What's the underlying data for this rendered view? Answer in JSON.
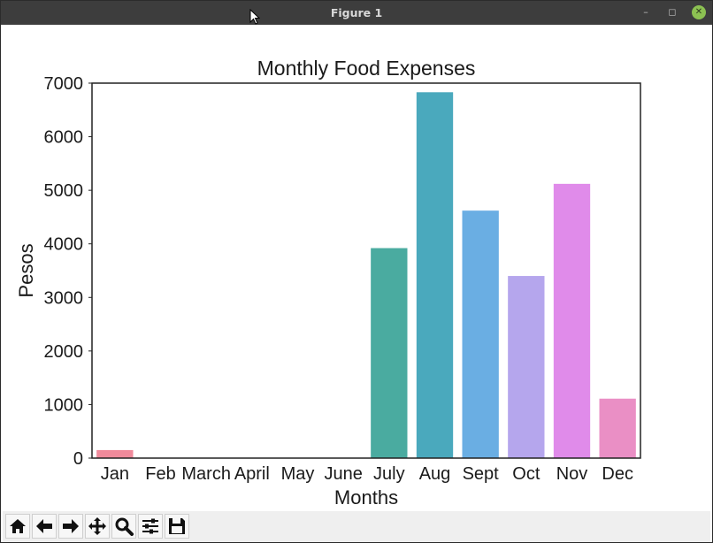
{
  "window": {
    "title": "Figure 1"
  },
  "toolbar": {
    "tools": [
      {
        "name": "home-icon",
        "label": "Home"
      },
      {
        "name": "back-arrow-icon",
        "label": "Back"
      },
      {
        "name": "forward-arrow-icon",
        "label": "Forward"
      },
      {
        "name": "pan-icon",
        "label": "Pan"
      },
      {
        "name": "zoom-icon",
        "label": "Zoom"
      },
      {
        "name": "configure-subplots-icon",
        "label": "Configure subplots"
      },
      {
        "name": "save-icon",
        "label": "Save"
      }
    ]
  },
  "chart_data": {
    "type": "bar",
    "title": "Monthly Food Expenses",
    "xlabel": "Months",
    "ylabel": "Pesos",
    "categories": [
      "Jan",
      "Feb",
      "March",
      "April",
      "May",
      "June",
      "July",
      "Aug",
      "Sept",
      "Oct",
      "Nov",
      "Dec"
    ],
    "values": [
      150,
      0,
      0,
      0,
      0,
      0,
      3920,
      6830,
      4620,
      3400,
      5120,
      1110
    ],
    "colors": [
      "#f08a9b",
      "#e49a57",
      "#c3a648",
      "#9fae4d",
      "#6db857",
      "#4bb58a",
      "#4aaba0",
      "#4aa9bd",
      "#6aaee3",
      "#b5a6ed",
      "#e08bea",
      "#ea8fc5"
    ],
    "ylim": [
      0,
      7000
    ],
    "yticks": [
      0,
      1000,
      2000,
      3000,
      4000,
      5000,
      6000,
      7000
    ],
    "grid": false,
    "legend": "none"
  }
}
